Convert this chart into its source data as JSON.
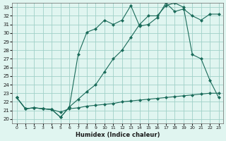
{
  "bg_color": "#e0f5f0",
  "grid_color": "#a0d0c8",
  "line_color": "#1a6b5a",
  "xlabel": "Humidex (Indice chaleur)",
  "xlim": [
    -0.5,
    23.5
  ],
  "ylim": [
    19.5,
    33.5
  ],
  "yticks": [
    20,
    21,
    22,
    23,
    24,
    25,
    26,
    27,
    28,
    29,
    30,
    31,
    32,
    33
  ],
  "xticks": [
    0,
    1,
    2,
    3,
    4,
    5,
    6,
    7,
    8,
    9,
    10,
    11,
    12,
    13,
    14,
    15,
    16,
    17,
    18,
    19,
    20,
    21,
    22,
    23
  ],
  "line1_x": [
    0,
    1,
    2,
    3,
    4,
    5,
    6,
    7,
    8,
    9,
    10,
    11,
    12,
    13,
    14,
    15,
    16,
    17,
    18,
    19,
    20,
    21,
    22,
    23
  ],
  "line1_y": [
    22.5,
    21.2,
    21.3,
    21.2,
    21.1,
    20.8,
    21.2,
    21.3,
    21.5,
    21.6,
    21.7,
    21.8,
    22.0,
    22.1,
    22.2,
    22.3,
    22.4,
    22.5,
    22.6,
    22.7,
    22.8,
    22.9,
    23.0,
    23.0
  ],
  "line2_x": [
    0,
    1,
    2,
    3,
    4,
    5,
    6,
    7,
    8,
    9,
    10,
    11,
    12,
    13,
    14,
    15,
    16,
    17,
    18,
    19,
    20,
    21,
    22,
    23
  ],
  "line2_y": [
    22.5,
    21.2,
    21.3,
    21.2,
    21.1,
    20.2,
    21.4,
    22.3,
    23.2,
    24.0,
    25.5,
    27.0,
    28.0,
    29.5,
    31.0,
    32.0,
    32.0,
    33.2,
    33.5,
    33.0,
    27.5,
    27.0,
    24.5,
    22.5
  ],
  "line3_x": [
    0,
    1,
    2,
    3,
    4,
    5,
    6,
    7,
    8,
    9,
    10,
    11,
    12,
    13,
    14,
    15,
    16,
    17,
    18,
    19,
    20,
    21,
    22,
    23
  ],
  "line3_y": [
    22.5,
    21.2,
    21.3,
    21.2,
    21.1,
    20.2,
    21.4,
    27.5,
    30.1,
    30.5,
    31.5,
    31.0,
    31.5,
    33.2,
    30.8,
    31.0,
    31.8,
    33.5,
    32.5,
    32.8,
    32.0,
    31.5,
    32.2,
    32.2
  ]
}
